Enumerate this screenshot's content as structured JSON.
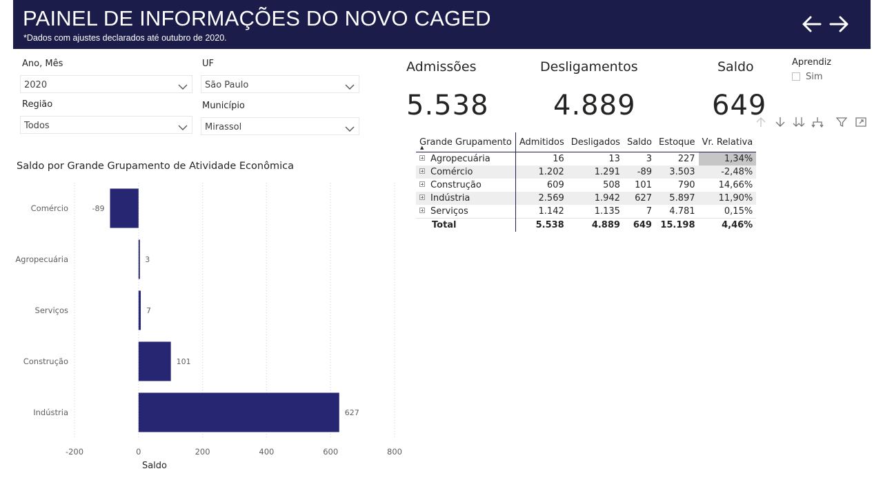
{
  "header": {
    "title": "PAINEL DE INFORMAÇÕES DO NOVO CAGED",
    "subtitle": "*Dados com ajustes declarados até outubro de 2020."
  },
  "nav": {
    "back_icon": "arrow-left-icon",
    "forward_icon": "arrow-right-icon",
    "color": "#ffffff"
  },
  "filters": {
    "ano_mes": {
      "label": "Ano, Mês",
      "value": "2020"
    },
    "uf": {
      "label": "UF",
      "value": "São Paulo"
    },
    "regiao": {
      "label": "Região",
      "value": "Todos"
    },
    "municipio": {
      "label": "Município",
      "value": "Mirassol"
    }
  },
  "kpis": {
    "admissoes": {
      "label": "Admissões",
      "value": "5.538"
    },
    "desligamentos": {
      "label": "Desligamentos",
      "value": "4.889"
    },
    "saldo": {
      "label": "Saldo",
      "value": "649"
    }
  },
  "aprendiz": {
    "title": "Aprendiz",
    "option": "Sim",
    "checked": false
  },
  "visual_header_icons": [
    "arrow-up-icon",
    "arrow-down-icon",
    "double-arrow-down-icon",
    "expand-hierarchy-icon",
    "filter-icon",
    "focus-mode-icon"
  ],
  "table": {
    "columns": [
      "Grande Grupamento",
      "Admitidos",
      "Desligados",
      "Saldo",
      "Estoque",
      "Vr. Relativa"
    ],
    "rows": [
      [
        "Agropecuária",
        "16",
        "13",
        "3",
        "227",
        "1,34%"
      ],
      [
        "Comércio",
        "1.202",
        "1.291",
        "-89",
        "3.503",
        "-2,48%"
      ],
      [
        "Construção",
        "609",
        "508",
        "101",
        "790",
        "14,66%"
      ],
      [
        "Indústria",
        "2.569",
        "1.942",
        "627",
        "5.897",
        "11,90%"
      ],
      [
        "Serviços",
        "1.142",
        "1.135",
        "7",
        "4.781",
        "0,15%"
      ]
    ],
    "total": [
      "Total",
      "5.538",
      "4.889",
      "649",
      "15.198",
      "4,46%"
    ]
  },
  "chart": {
    "title": "Saldo por Grande Grupamento de Atividade Econômica",
    "bar_color": "#262673"
  },
  "chart_data": {
    "type": "bar",
    "orientation": "horizontal",
    "categories": [
      "Comércio",
      "Agropecuária",
      "Serviços",
      "Construção",
      "Indústria"
    ],
    "values": [
      -89,
      3,
      7,
      101,
      627
    ],
    "data_labels": [
      "-89",
      "3",
      "7",
      "101",
      "627"
    ],
    "xlabel": "Saldo",
    "ylabel": "",
    "xlim": [
      -200,
      800
    ],
    "xticks": [
      -200,
      0,
      200,
      400,
      600,
      800
    ],
    "grid": "vertical-dotted"
  }
}
